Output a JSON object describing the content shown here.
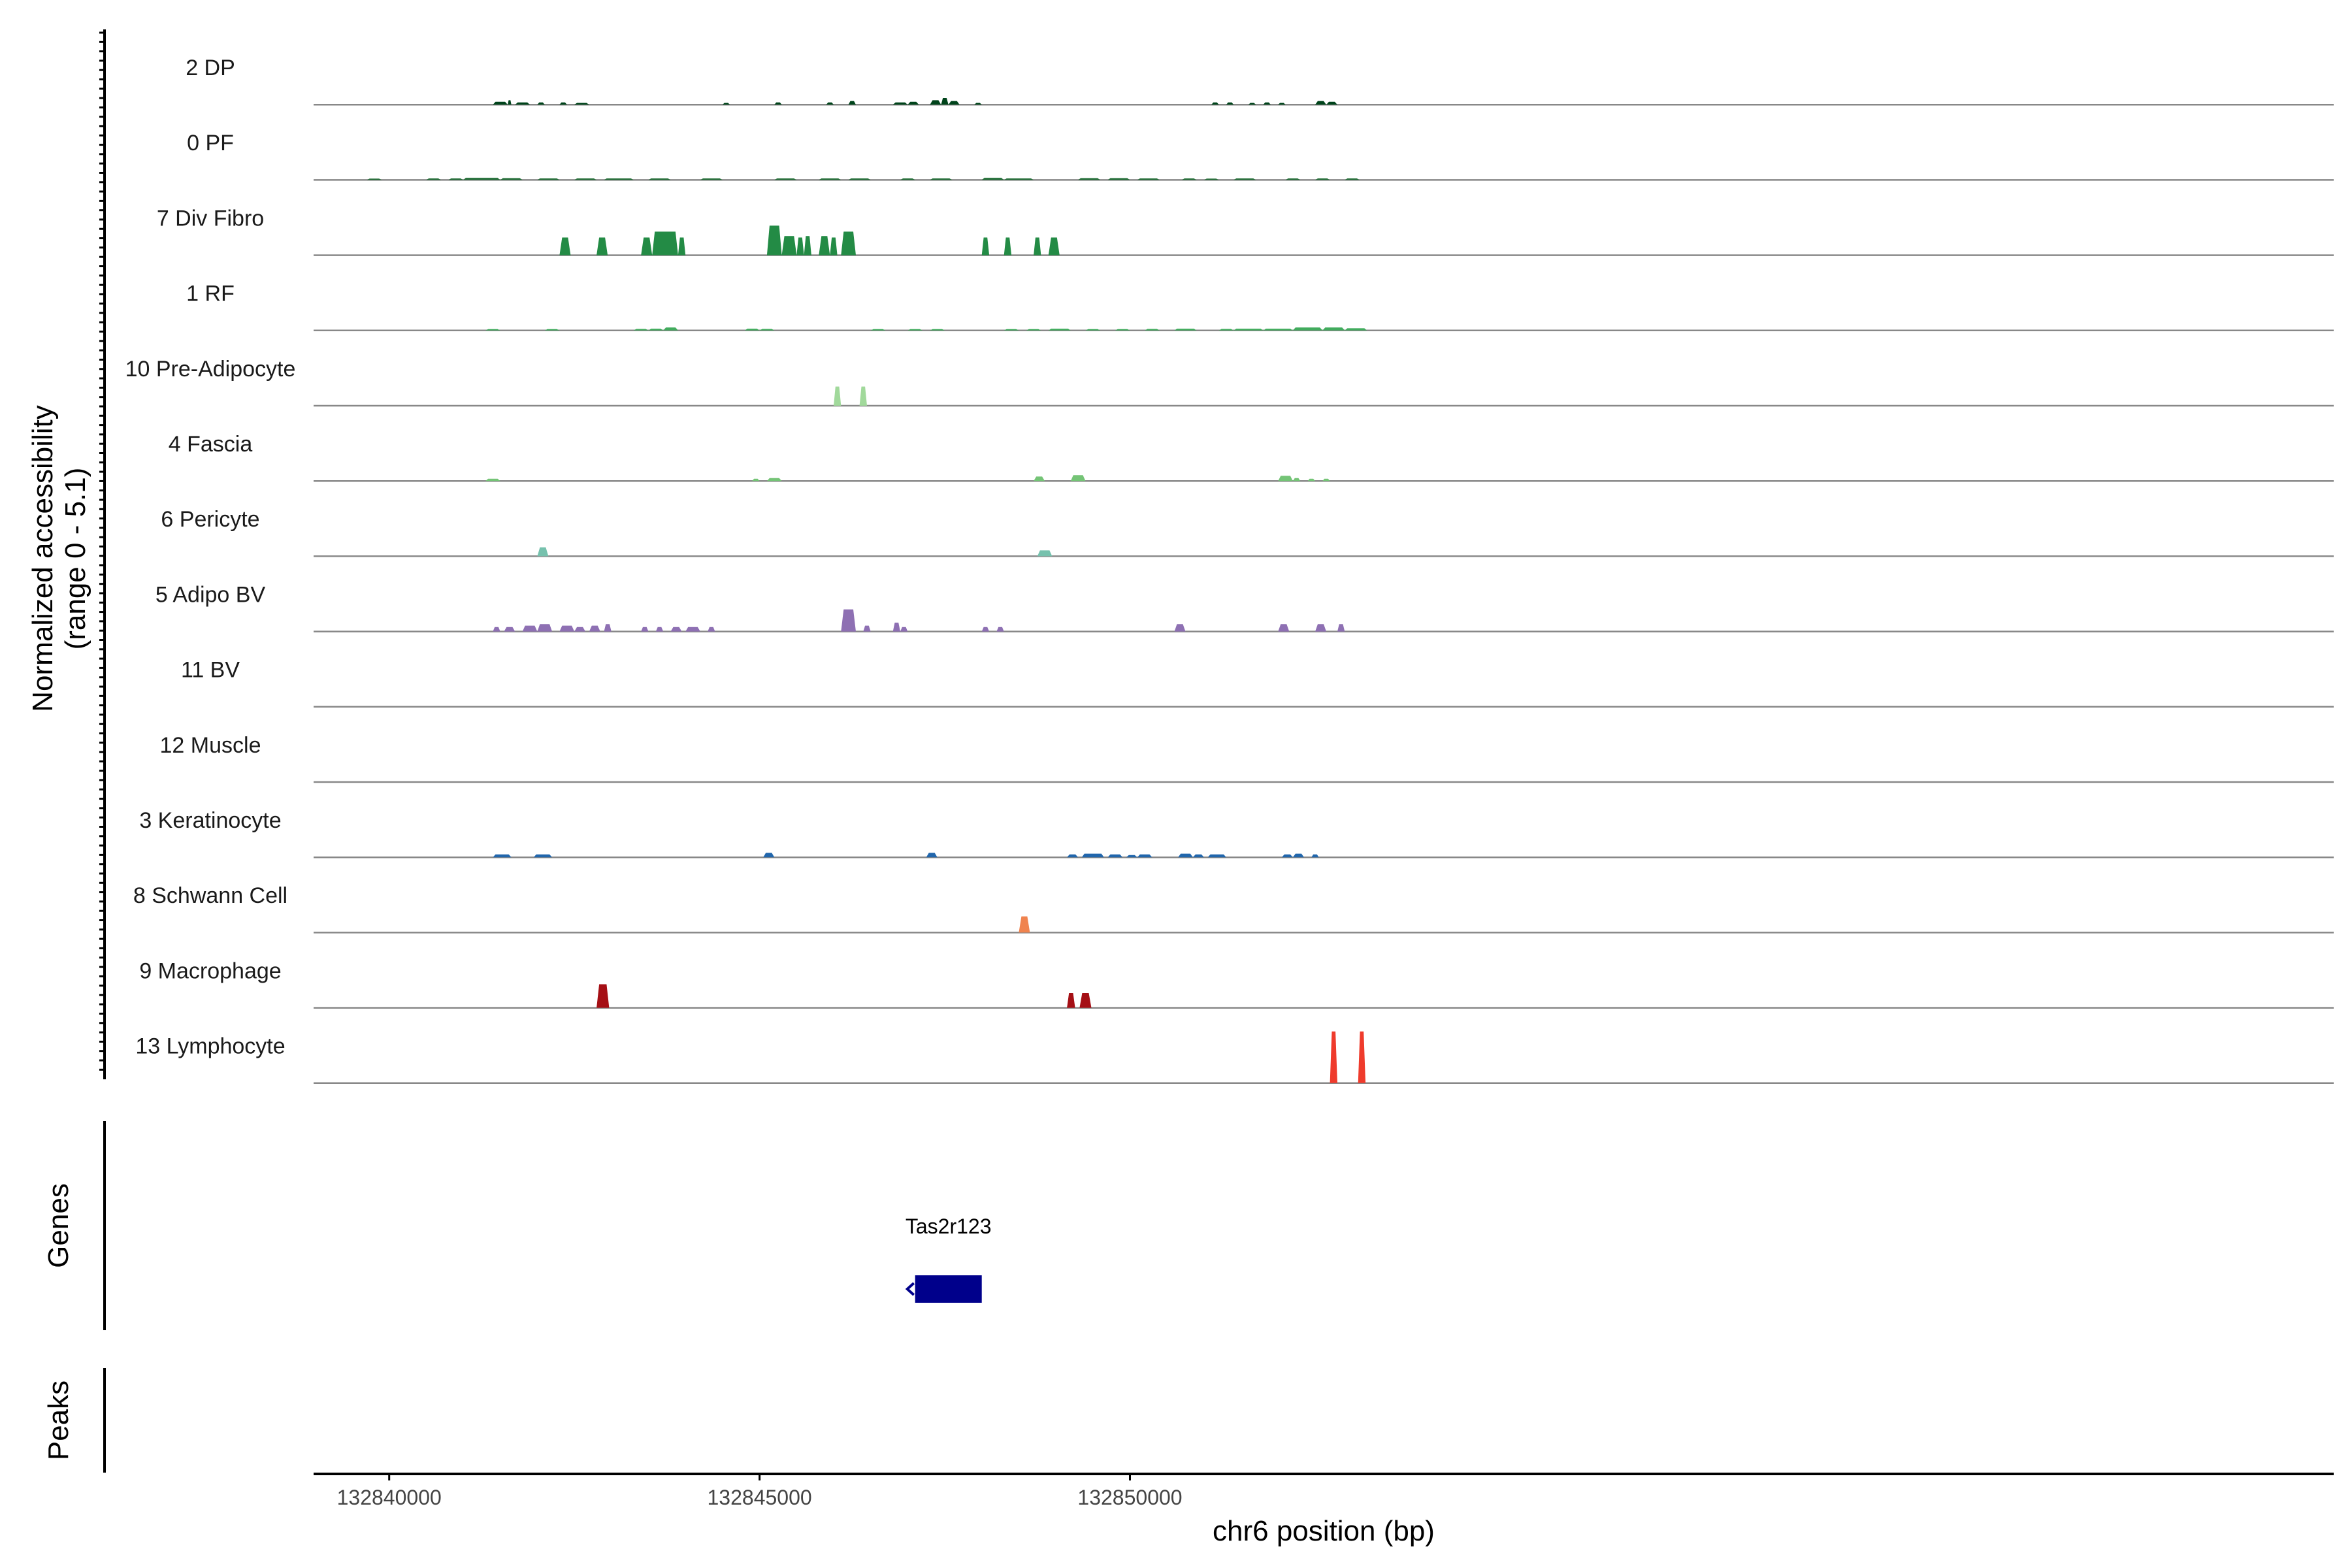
{
  "chart_data": {
    "type": "area",
    "y_axis_title_line1": "Normalized accessibility",
    "y_axis_title_line2": "(range 0 - 5.1)",
    "ylim": [
      0,
      5.1
    ],
    "x_axis_title": "chr6 position (bp)",
    "xlim": [
      132838980,
      132866250
    ],
    "x_ticks": [
      132840000,
      132845000,
      132850000
    ],
    "x_tick_labels": [
      "132840000",
      "132845000",
      "132850000"
    ],
    "genes_track_label": "Genes",
    "peaks_track_label": "Peaks",
    "genes": [
      {
        "name": "Tas2r123",
        "start": 132847100,
        "end": 132848000,
        "strand": "-",
        "color": "#00008B"
      }
    ],
    "series": [
      {
        "name": "2 DP",
        "color": "#00441B",
        "peaks": [
          [
            132841400,
            132841600,
            0.2
          ],
          [
            132841600,
            132841650,
            0.3
          ],
          [
            132841700,
            132841900,
            0.15
          ],
          [
            132842000,
            132842100,
            0.15
          ],
          [
            132842300,
            132842400,
            0.15
          ],
          [
            132842500,
            132842700,
            0.12
          ],
          [
            132844500,
            132844600,
            0.12
          ],
          [
            132845200,
            132845300,
            0.15
          ],
          [
            132845900,
            132846000,
            0.15
          ],
          [
            132846200,
            132846300,
            0.25
          ],
          [
            132846800,
            132847000,
            0.15
          ],
          [
            132847000,
            132847150,
            0.2
          ],
          [
            132847300,
            132847450,
            0.3
          ],
          [
            132847450,
            132847550,
            0.45
          ],
          [
            132847550,
            132847700,
            0.25
          ],
          [
            132847900,
            132848000,
            0.12
          ],
          [
            132851100,
            132851200,
            0.15
          ],
          [
            132851300,
            132851400,
            0.15
          ],
          [
            132851600,
            132851700,
            0.12
          ],
          [
            132851800,
            132851900,
            0.15
          ],
          [
            132852000,
            132852100,
            0.12
          ],
          [
            132852500,
            132852650,
            0.25
          ],
          [
            132852650,
            132852800,
            0.2
          ]
        ]
      },
      {
        "name": "0 PF",
        "color": "#1D6B32",
        "peaks": [
          [
            132839700,
            132839900,
            0.06
          ],
          [
            132840500,
            132840700,
            0.1
          ],
          [
            132840800,
            132841000,
            0.1
          ],
          [
            132841000,
            132841500,
            0.14
          ],
          [
            132841500,
            132841800,
            0.12
          ],
          [
            132842000,
            132842300,
            0.1
          ],
          [
            132842500,
            132842800,
            0.1
          ],
          [
            132842900,
            132843300,
            0.1
          ],
          [
            132843500,
            132843800,
            0.1
          ],
          [
            132844200,
            132844500,
            0.1
          ],
          [
            132845200,
            132845500,
            0.1
          ],
          [
            132845800,
            132846100,
            0.1
          ],
          [
            132846200,
            132846500,
            0.1
          ],
          [
            132846900,
            132847100,
            0.1
          ],
          [
            132847300,
            132847600,
            0.1
          ],
          [
            132848000,
            132848300,
            0.14
          ],
          [
            132848300,
            132848700,
            0.1
          ],
          [
            132849300,
            132849600,
            0.12
          ],
          [
            132849700,
            132850000,
            0.12
          ],
          [
            132850100,
            132850400,
            0.1
          ],
          [
            132850700,
            132850900,
            0.1
          ],
          [
            132851000,
            132851200,
            0.06
          ],
          [
            132851400,
            132851700,
            0.1
          ],
          [
            132852100,
            132852300,
            0.1
          ],
          [
            132852500,
            132852700,
            0.1
          ],
          [
            132852900,
            132853100,
            0.1
          ]
        ]
      },
      {
        "name": "7 Div Fibro",
        "color": "#238B45",
        "peaks": [
          [
            132842300,
            132842450,
            1.2
          ],
          [
            132842800,
            132842950,
            1.2
          ],
          [
            132843400,
            132843550,
            1.2
          ],
          [
            132843550,
            132843900,
            1.6
          ],
          [
            132843900,
            132844000,
            1.2
          ],
          [
            132845100,
            132845300,
            2.0
          ],
          [
            132845300,
            132845500,
            1.3
          ],
          [
            132845500,
            132845600,
            1.2
          ],
          [
            132845600,
            132845700,
            1.3
          ],
          [
            132845800,
            132845950,
            1.3
          ],
          [
            132845950,
            132846050,
            1.2
          ],
          [
            132846100,
            132846300,
            1.6
          ],
          [
            132848000,
            132848100,
            1.2
          ],
          [
            132848300,
            132848400,
            1.2
          ],
          [
            132848700,
            132848800,
            1.2
          ],
          [
            132848900,
            132849050,
            1.2
          ]
        ]
      },
      {
        "name": "1 RF",
        "color": "#41AB5D",
        "peaks": [
          [
            132841300,
            132841500,
            0.06
          ],
          [
            132842100,
            132842300,
            0.08
          ],
          [
            132843300,
            132843500,
            0.1
          ],
          [
            132843500,
            132843700,
            0.12
          ],
          [
            132843700,
            132843900,
            0.2
          ],
          [
            132844800,
            132845000,
            0.12
          ],
          [
            132845000,
            132845200,
            0.1
          ],
          [
            132846500,
            132846700,
            0.08
          ],
          [
            132847000,
            132847200,
            0.08
          ],
          [
            132847300,
            132847500,
            0.08
          ],
          [
            132848300,
            132848500,
            0.08
          ],
          [
            132848600,
            132848800,
            0.08
          ],
          [
            132848900,
            132849200,
            0.12
          ],
          [
            132849400,
            132849600,
            0.08
          ],
          [
            132849800,
            132850000,
            0.08
          ],
          [
            132850200,
            132850400,
            0.1
          ],
          [
            132850600,
            132850900,
            0.12
          ],
          [
            132851200,
            132851400,
            0.1
          ],
          [
            132851400,
            132851800,
            0.12
          ],
          [
            132851800,
            132852200,
            0.12
          ],
          [
            132852200,
            132852600,
            0.2
          ],
          [
            132852600,
            132852900,
            0.2
          ],
          [
            132852900,
            132853200,
            0.15
          ]
        ]
      },
      {
        "name": "10 Pre-Adipocyte",
        "color": "#A1D99B",
        "peaks": [
          [
            132846000,
            132846100,
            1.3
          ],
          [
            132846350,
            132846450,
            1.3
          ]
        ]
      },
      {
        "name": "4 Fascia",
        "color": "#74C476",
        "peaks": [
          [
            132841300,
            132841500,
            0.15
          ],
          [
            132844900,
            132845000,
            0.15
          ],
          [
            132845100,
            132845300,
            0.2
          ],
          [
            132848700,
            132848850,
            0.3
          ],
          [
            132849200,
            132849400,
            0.4
          ],
          [
            132852000,
            132852200,
            0.35
          ],
          [
            132852200,
            132852300,
            0.2
          ],
          [
            132852400,
            132852500,
            0.15
          ],
          [
            132852600,
            132852700,
            0.15
          ]
        ]
      },
      {
        "name": "6 Pericyte",
        "color": "#76C1AD",
        "peaks": [
          [
            132842000,
            132842150,
            0.6
          ],
          [
            132848750,
            132848950,
            0.4
          ]
        ]
      },
      {
        "name": "5 Adipo BV",
        "color": "#8E70B3",
        "peaks": [
          [
            132841400,
            132841500,
            0.3
          ],
          [
            132841550,
            132841700,
            0.3
          ],
          [
            132841800,
            132842000,
            0.4
          ],
          [
            132842000,
            132842200,
            0.5
          ],
          [
            132842300,
            132842500,
            0.4
          ],
          [
            132842500,
            132842650,
            0.3
          ],
          [
            132842700,
            132842850,
            0.4
          ],
          [
            132842900,
            132843000,
            0.5
          ],
          [
            132843400,
            132843500,
            0.3
          ],
          [
            132843600,
            132843700,
            0.3
          ],
          [
            132843800,
            132843950,
            0.3
          ],
          [
            132844000,
            132844200,
            0.3
          ],
          [
            132844300,
            132844400,
            0.3
          ],
          [
            132846100,
            132846300,
            1.5
          ],
          [
            132846400,
            132846500,
            0.4
          ],
          [
            132846800,
            132846900,
            0.6
          ],
          [
            132846900,
            132847000,
            0.3
          ],
          [
            132848000,
            132848100,
            0.3
          ],
          [
            132848200,
            132848300,
            0.3
          ],
          [
            132850600,
            132850750,
            0.5
          ],
          [
            132852000,
            132852150,
            0.5
          ],
          [
            132852500,
            132852650,
            0.5
          ],
          [
            132852800,
            132852900,
            0.5
          ]
        ]
      },
      {
        "name": "11 BV",
        "color": "#6A51A3",
        "peaks": []
      },
      {
        "name": "12 Muscle",
        "color": "#4C78A8",
        "peaks": []
      },
      {
        "name": "3 Keratinocyte",
        "color": "#2166AC",
        "peaks": [
          [
            132841400,
            132841650,
            0.2
          ],
          [
            132841950,
            132842200,
            0.2
          ],
          [
            132845050,
            132845200,
            0.3
          ],
          [
            132847250,
            132847400,
            0.3
          ],
          [
            132849150,
            132849300,
            0.2
          ],
          [
            132849350,
            132849650,
            0.25
          ],
          [
            132849700,
            132849900,
            0.2
          ],
          [
            132849950,
            132850100,
            0.15
          ],
          [
            132850100,
            132850300,
            0.2
          ],
          [
            132850650,
            132850850,
            0.25
          ],
          [
            132850850,
            132851000,
            0.2
          ],
          [
            132851050,
            132851300,
            0.2
          ],
          [
            132852050,
            132852200,
            0.2
          ],
          [
            132852200,
            132852350,
            0.25
          ],
          [
            132852450,
            132852550,
            0.2
          ]
        ]
      },
      {
        "name": "8 Schwann Cell",
        "color": "#F0834E",
        "peaks": [
          [
            132848500,
            132848650,
            1.1
          ]
        ]
      },
      {
        "name": "9 Macrophage",
        "color": "#A50F15",
        "peaks": [
          [
            132842800,
            132842970,
            1.6
          ],
          [
            132849150,
            132849260,
            1.0
          ],
          [
            132849320,
            132849480,
            1.0
          ]
        ]
      },
      {
        "name": "13 Lymphocyte",
        "color": "#EF3B2C",
        "peaks": [
          [
            132852700,
            132852800,
            3.5
          ],
          [
            132853080,
            132853180,
            3.5
          ]
        ]
      }
    ]
  }
}
